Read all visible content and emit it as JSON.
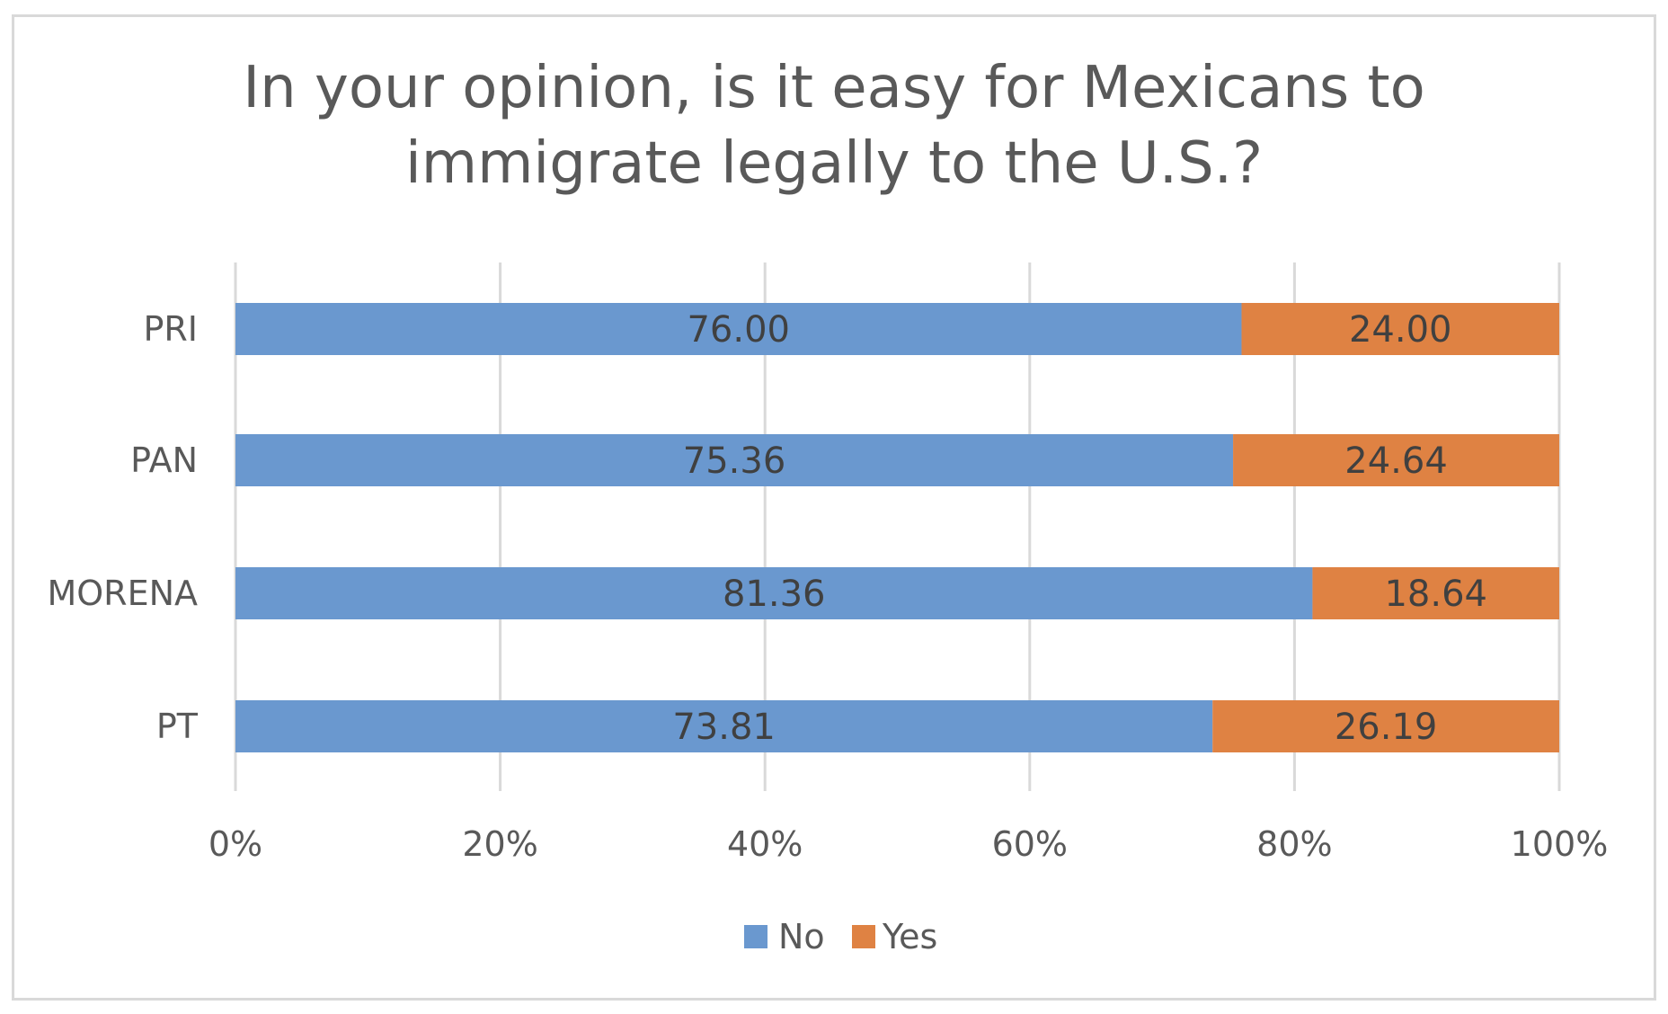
{
  "chart_data": {
    "type": "bar",
    "orientation": "horizontal",
    "stacking": "percent",
    "title": "In your opinion, is it easy for Mexicans to immigrate legally to the U.S.?",
    "title_lines": [
      "In your opinion, is it easy for Mexicans to",
      "immigrate legally to the U.S.?"
    ],
    "categories": [
      "PRI",
      "PAN",
      "MORENA",
      "PT"
    ],
    "series": [
      {
        "name": "No",
        "values": [
          76.0,
          75.36,
          81.36,
          73.81
        ],
        "labels": [
          "76.00",
          "75.36",
          "81.36",
          "73.81"
        ],
        "color": "#6a98cf"
      },
      {
        "name": "Yes",
        "values": [
          24.0,
          24.64,
          18.64,
          26.19
        ],
        "labels": [
          "24.00",
          "24.64",
          "18.64",
          "26.19"
        ],
        "color": "#df8243"
      }
    ],
    "x_ticks": [
      "0%",
      "20%",
      "40%",
      "60%",
      "80%",
      "100%"
    ],
    "xlim": [
      0,
      100
    ],
    "grid": "vertical",
    "gridline_color": "#d9d9d9",
    "legend_position": "bottom"
  }
}
